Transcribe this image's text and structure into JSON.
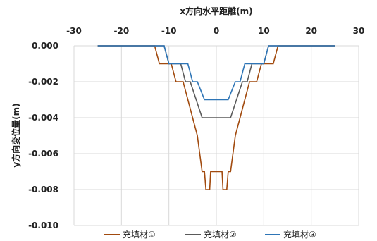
{
  "chart_data": {
    "type": "line",
    "xlabel": "x方向水平距離(m)",
    "ylabel": "y方向変位量(m)",
    "xlim": [
      -30,
      30
    ],
    "ylim": [
      -0.01,
      0.0
    ],
    "x_ticks": [
      -30,
      -20,
      -10,
      0,
      10,
      20,
      30
    ],
    "x_tick_labels": [
      "-30",
      "-20",
      "-10",
      "0",
      "10",
      "20",
      "30"
    ],
    "y_ticks": [
      0.0,
      -0.002,
      -0.004,
      -0.006,
      -0.008,
      -0.01
    ],
    "y_tick_labels": [
      "0.000",
      "-0.002",
      "-0.004",
      "-0.006",
      "-0.008",
      "-0.010"
    ],
    "x_axis_position": "top",
    "grid": true,
    "legend_position": "bottom",
    "series": [
      {
        "name": "充填材①",
        "color": "#A14A0E",
        "points": [
          [
            -25,
            0
          ],
          [
            -13,
            0
          ],
          [
            -12,
            -0.001
          ],
          [
            -9.5,
            -0.001
          ],
          [
            -8.5,
            -0.002
          ],
          [
            -7,
            -0.002
          ],
          [
            -5,
            -0.004
          ],
          [
            -4,
            -0.005
          ],
          [
            -3,
            -0.007
          ],
          [
            -2.5,
            -0.007
          ],
          [
            -2.2,
            -0.008
          ],
          [
            -1.4,
            -0.008
          ],
          [
            -1.2,
            -0.007
          ],
          [
            1.2,
            -0.007
          ],
          [
            1.4,
            -0.008
          ],
          [
            2.2,
            -0.008
          ],
          [
            2.5,
            -0.007
          ],
          [
            3,
            -0.007
          ],
          [
            4,
            -0.005
          ],
          [
            5,
            -0.004
          ],
          [
            7,
            -0.002
          ],
          [
            8.5,
            -0.002
          ],
          [
            9.5,
            -0.001
          ],
          [
            12,
            -0.001
          ],
          [
            13,
            0
          ],
          [
            25,
            0
          ]
        ]
      },
      {
        "name": "充填材②",
        "color": "#5A5A5A",
        "points": [
          [
            -25,
            0
          ],
          [
            -11,
            0
          ],
          [
            -10,
            -0.001
          ],
          [
            -7.5,
            -0.001
          ],
          [
            -6.5,
            -0.002
          ],
          [
            -5.5,
            -0.002
          ],
          [
            -3,
            -0.004
          ],
          [
            3,
            -0.004
          ],
          [
            5.5,
            -0.002
          ],
          [
            6.5,
            -0.002
          ],
          [
            7.5,
            -0.001
          ],
          [
            10,
            -0.001
          ],
          [
            11,
            0
          ],
          [
            25,
            0
          ]
        ]
      },
      {
        "name": "充填材③",
        "color": "#2E75B6",
        "points": [
          [
            -25,
            0
          ],
          [
            -11,
            0
          ],
          [
            -10,
            -0.001
          ],
          [
            -6,
            -0.001
          ],
          [
            -5,
            -0.002
          ],
          [
            -4,
            -0.002
          ],
          [
            -2.5,
            -0.003
          ],
          [
            2.5,
            -0.003
          ],
          [
            4,
            -0.002
          ],
          [
            5,
            -0.002
          ],
          [
            6,
            -0.001
          ],
          [
            10,
            -0.001
          ],
          [
            11,
            0
          ],
          [
            25,
            0
          ]
        ]
      }
    ]
  }
}
